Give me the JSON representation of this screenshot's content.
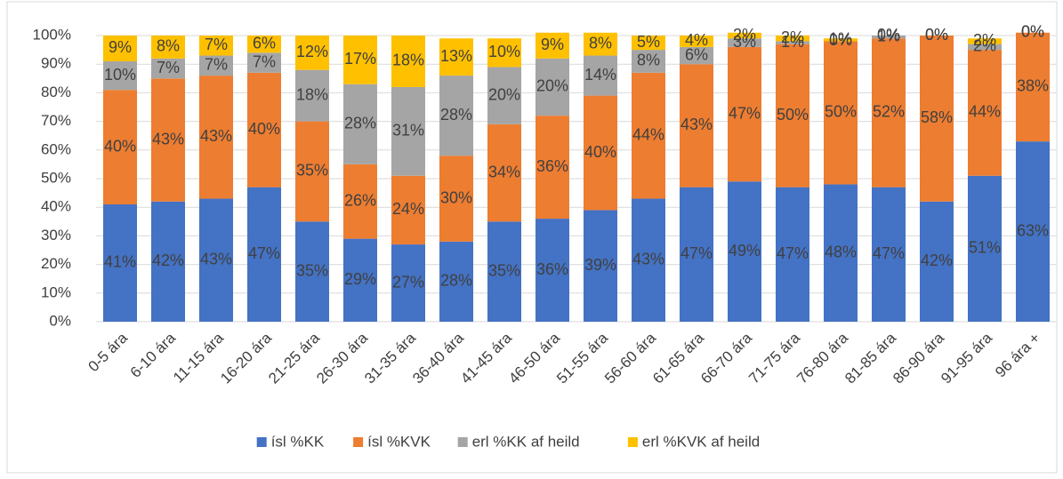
{
  "chart_data": {
    "type": "stacked_bar",
    "categories": [
      "0-5 ára",
      "6-10 ára",
      "11-15 ára",
      "16-20 ára",
      "21-25 ára",
      "26-30 ára",
      "31-35 ára",
      "36-40 ára",
      "41-45 ára",
      "46-50 ára",
      "51-55 ára",
      "56-60 ára",
      "61-65 ára",
      "66-70 ára",
      "71-75 ára",
      "76-80 ára",
      "81-85 ára",
      "86-90 ára",
      "91-95 ára",
      "96 ára +"
    ],
    "series": [
      {
        "name": "ísl %KK",
        "color": "#4472c4",
        "values": [
          41,
          42,
          43,
          47,
          35,
          29,
          27,
          28,
          35,
          36,
          39,
          43,
          47,
          49,
          47,
          48,
          47,
          42,
          51,
          63
        ],
        "value_labels": [
          "41%",
          "42%",
          "43%",
          "47%",
          "35%",
          "29%",
          "27%",
          "28%",
          "35%",
          "36%",
          "39%",
          "43%",
          "47%",
          "49%",
          "47%",
          "48%",
          "47%",
          "42%",
          "51%",
          "63%"
        ]
      },
      {
        "name": "ísl %KVK",
        "color": "#ed7d31",
        "values": [
          40,
          43,
          43,
          40,
          35,
          26,
          24,
          30,
          34,
          36,
          40,
          44,
          43,
          47,
          50,
          50,
          52,
          58,
          44,
          38
        ],
        "value_labels": [
          "40%",
          "43%",
          "43%",
          "40%",
          "35%",
          "26%",
          "24%",
          "30%",
          "34%",
          "36%",
          "40%",
          "44%",
          "43%",
          "47%",
          "50%",
          "50%",
          "52%",
          "58%",
          "44%",
          "38%"
        ]
      },
      {
        "name": "erl %KK af heild",
        "color": "#a5a5a5",
        "values": [
          10,
          7,
          7,
          7,
          18,
          28,
          31,
          28,
          20,
          20,
          14,
          8,
          6,
          3,
          1,
          0,
          1,
          0,
          2,
          0
        ],
        "value_labels": [
          "10%",
          "7%",
          "7%",
          "7%",
          "18%",
          "28%",
          "31%",
          "28%",
          "20%",
          "20%",
          "14%",
          "8%",
          "6%",
          "3%",
          "1%",
          "0%",
          "1%",
          "0%",
          "2%",
          "0%"
        ]
      },
      {
        "name": "erl %KVK af heild",
        "color": "#ffc000",
        "values": [
          9,
          8,
          7,
          6,
          12,
          17,
          18,
          13,
          10,
          9,
          8,
          5,
          4,
          2,
          2,
          1,
          0,
          0,
          2,
          0
        ],
        "value_labels": [
          "9%",
          "8%",
          "7%",
          "6%",
          "12%",
          "17%",
          "18%",
          "13%",
          "10%",
          "9%",
          "8%",
          "5%",
          "4%",
          "2%",
          "2%",
          "1%",
          "0%",
          "0%",
          "2%",
          "0%"
        ]
      }
    ],
    "ylim": [
      0,
      100
    ],
    "yticks": [
      {
        "value": 0,
        "label": "0%"
      },
      {
        "value": 10,
        "label": "10%"
      },
      {
        "value": 20,
        "label": "20%"
      },
      {
        "value": 30,
        "label": "30%"
      },
      {
        "value": 40,
        "label": "40%"
      },
      {
        "value": 50,
        "label": "50%"
      },
      {
        "value": 60,
        "label": "60%"
      },
      {
        "value": 70,
        "label": "70%"
      },
      {
        "value": 80,
        "label": "80%"
      },
      {
        "value": 90,
        "label": "90%"
      },
      {
        "value": 100,
        "label": "100%"
      }
    ],
    "grid": true,
    "legend": "bottom"
  }
}
